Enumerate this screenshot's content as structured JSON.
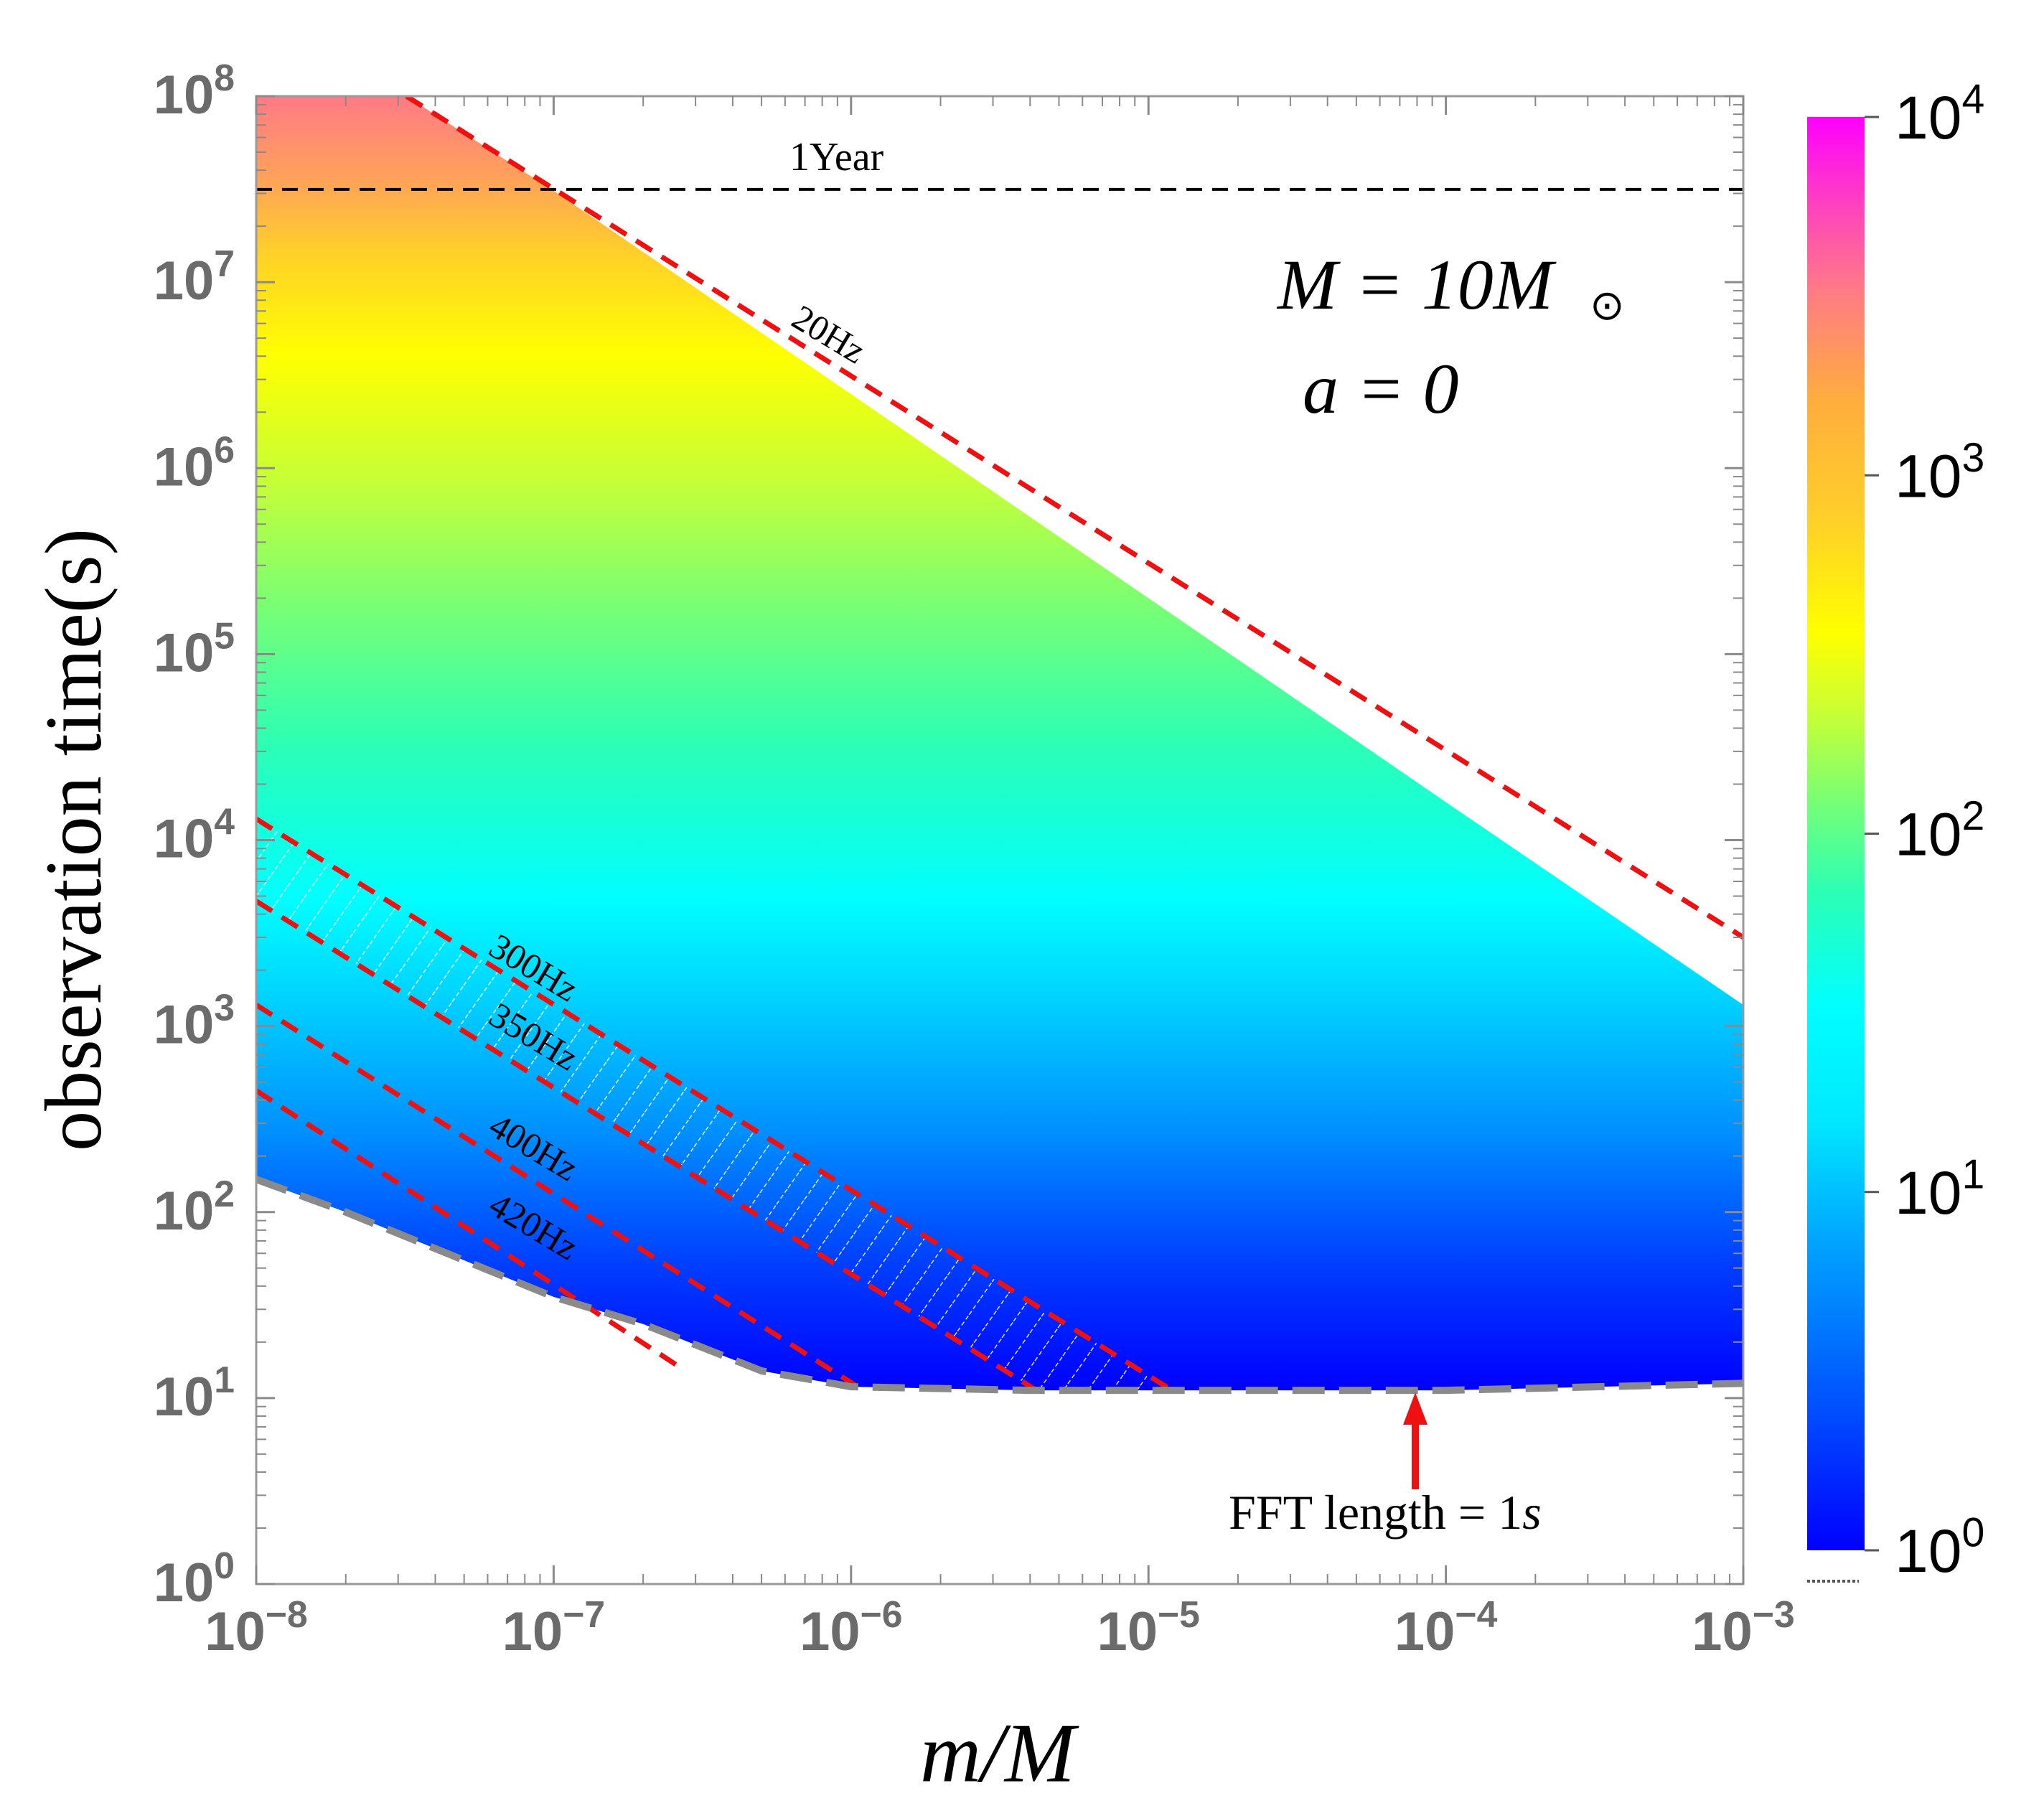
{
  "chart_data": {
    "type": "area",
    "title": "",
    "xlabel": "m/M",
    "ylabel": "observation time(s)",
    "xscale": "log",
    "yscale": "log",
    "xlim": [
      1e-08,
      0.001
    ],
    "ylim": [
      1,
      100000000
    ],
    "x_ticks": [
      {
        "exp": "−8"
      },
      {
        "exp": "−7"
      },
      {
        "exp": "−6"
      },
      {
        "exp": "−5"
      },
      {
        "exp": "−4"
      },
      {
        "exp": "−3"
      }
    ],
    "y_ticks": [
      {
        "exp": "0"
      },
      {
        "exp": "1"
      },
      {
        "exp": "2"
      },
      {
        "exp": "3"
      },
      {
        "exp": "4"
      },
      {
        "exp": "5"
      },
      {
        "exp": "6"
      },
      {
        "exp": "7"
      },
      {
        "exp": "8"
      }
    ],
    "tick_base": "10",
    "annotations": {
      "mass_label": "M = 10M",
      "sun_symbol": "⊙",
      "spin_label": "a = 0",
      "year_label": "1Year",
      "fft_label": "FFT length  = 1",
      "fft_unit": "s"
    },
    "year_line_seconds": 31536000,
    "region_boundary_upper": {
      "name": "20Hz",
      "x": [
        1e-08,
        3.2e-08,
        1e-07,
        1e-06,
        1e-05,
        0.0001,
        0.001
      ],
      "y": [
        100000000,
        100000000,
        31000000,
        2500000,
        200000,
        16000,
        1300
      ]
    },
    "region_boundary_lower": {
      "name": "FFT length = 1s",
      "x": [
        1e-08,
        2e-08,
        5e-08,
        1e-07,
        2e-07,
        5e-07,
        1e-06,
        4e-06,
        1e-05,
        0.0001,
        0.001
      ],
      "y": [
        150,
        100,
        55,
        35,
        25,
        14,
        11.5,
        11,
        11,
        11,
        12
      ]
    },
    "frequency_lines": [
      {
        "name": "20Hz",
        "x": [
          3.2e-08,
          0.001
        ],
        "y": [
          100000000,
          3000
        ]
      },
      {
        "name": "300Hz",
        "x": [
          1e-08,
          1.2e-05
        ],
        "y": [
          13000,
          11
        ]
      },
      {
        "name": "350Hz",
        "x": [
          1e-08,
          4.2e-06
        ],
        "y": [
          4700,
          11
        ]
      },
      {
        "name": "400Hz",
        "x": [
          1e-08,
          1.1e-06
        ],
        "y": [
          1300,
          11
        ]
      },
      {
        "name": "420Hz",
        "x": [
          1e-08,
          2.6e-07
        ],
        "y": [
          450,
          15
        ]
      }
    ],
    "colorbar": {
      "scale": "log",
      "range": [
        1,
        10000
      ],
      "ticks": [
        {
          "exp": "0"
        },
        {
          "exp": "1"
        },
        {
          "exp": "2"
        },
        {
          "exp": "3"
        },
        {
          "exp": "4"
        }
      ],
      "colors": [
        "#0000ff",
        "#00a8ff",
        "#00ffff",
        "#2cffb4",
        "#a0ff40",
        "#ffff00",
        "#ffae3c",
        "#ff7a86",
        "#ff00ff"
      ]
    },
    "colors": {
      "frequency_line": "#ee1111",
      "year_line": "#000000",
      "lower_boundary": "#8a8a8a",
      "arrow": "#ee1111"
    }
  }
}
